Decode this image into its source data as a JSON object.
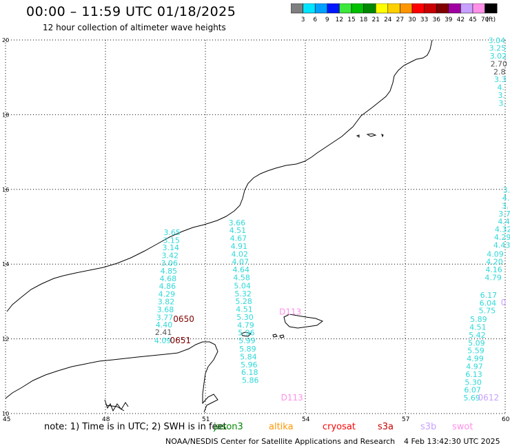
{
  "header": {
    "title": "00:00 – 11:59 UTC 01/18/2025",
    "subtitle": "12 hour collection of altimeter wave heights"
  },
  "colorbar": {
    "unit_label": "(ft)",
    "bins": [
      {
        "label": "3",
        "color": "#7f7f7f"
      },
      {
        "label": "6",
        "color": "#00e5ff"
      },
      {
        "label": "9",
        "color": "#00a0ff"
      },
      {
        "label": "12",
        "color": "#0018ff"
      },
      {
        "label": "15",
        "color": "#3ce83c"
      },
      {
        "label": "18",
        "color": "#00c000"
      },
      {
        "label": "21",
        "color": "#008800"
      },
      {
        "label": "24",
        "color": "#ffff00"
      },
      {
        "label": "27",
        "color": "#ffd000"
      },
      {
        "label": "30",
        "color": "#ff9600"
      },
      {
        "label": "33",
        "color": "#ff0000"
      },
      {
        "label": "36",
        "color": "#c80000"
      },
      {
        "label": "39",
        "color": "#800000"
      },
      {
        "label": "42",
        "color": "#a000a0"
      },
      {
        "label": "45",
        "color": "#c8a0ff"
      },
      {
        "label": "70",
        "color": "#ff90e8"
      },
      {
        "label": "",
        "color": "#000000"
      }
    ]
  },
  "axes": {
    "x_ticks": [
      {
        "lon": 45,
        "label": "45"
      },
      {
        "lon": 48,
        "label": "48"
      },
      {
        "lon": 51,
        "label": "51"
      },
      {
        "lon": 54,
        "label": "54"
      },
      {
        "lon": 57,
        "label": "57"
      },
      {
        "lon": 60,
        "label": "60"
      }
    ],
    "y_ticks": [
      {
        "lat": 10,
        "label": "10"
      },
      {
        "lat": 12,
        "label": "12"
      },
      {
        "lat": 14,
        "label": "14"
      },
      {
        "lat": 16,
        "label": "16"
      },
      {
        "lat": 18,
        "label": "18"
      },
      {
        "lat": 20,
        "label": "20"
      }
    ],
    "lon_range": [
      45,
      60
    ],
    "lat_range": [
      10,
      20
    ]
  },
  "tracks": [
    {
      "name": "track-a",
      "color": "#2fd8d8",
      "points": [
        {
          "lon": 50.0,
          "lat": 14.78,
          "v": "3.65"
        },
        {
          "lon": 49.98,
          "lat": 14.57,
          "v": "3.15"
        },
        {
          "lon": 49.96,
          "lat": 14.37,
          "v": "3.14"
        },
        {
          "lon": 49.94,
          "lat": 14.16,
          "v": "3.42"
        },
        {
          "lon": 49.92,
          "lat": 13.96,
          "v": "3.06"
        },
        {
          "lon": 49.9,
          "lat": 13.75,
          "v": "4.85"
        },
        {
          "lon": 49.88,
          "lat": 13.54,
          "v": "4.68"
        },
        {
          "lon": 49.86,
          "lat": 13.34,
          "v": "4.86"
        },
        {
          "lon": 49.84,
          "lat": 13.13,
          "v": "4.29"
        },
        {
          "lon": 49.82,
          "lat": 12.92,
          "v": "3.82"
        },
        {
          "lon": 49.8,
          "lat": 12.71,
          "v": "3.68"
        },
        {
          "lon": 49.78,
          "lat": 12.5,
          "v": "3.77"
        },
        {
          "lon": 49.76,
          "lat": 12.31,
          "v": "4.40"
        },
        {
          "lon": 49.74,
          "lat": 12.1,
          "v": "2.41",
          "color": "#555555"
        },
        {
          "lon": 49.72,
          "lat": 11.88,
          "v": "4.09"
        }
      ]
    },
    {
      "name": "track-b",
      "color": "#2fd8d8",
      "points": [
        {
          "lon": 51.95,
          "lat": 15.04,
          "v": "3.66"
        },
        {
          "lon": 51.97,
          "lat": 14.83,
          "v": "4.51"
        },
        {
          "lon": 51.99,
          "lat": 14.62,
          "v": "4.67"
        },
        {
          "lon": 52.01,
          "lat": 14.41,
          "v": "4.91"
        },
        {
          "lon": 52.03,
          "lat": 14.2,
          "v": "4.02"
        },
        {
          "lon": 52.05,
          "lat": 13.99,
          "v": "4.07"
        },
        {
          "lon": 52.07,
          "lat": 13.78,
          "v": "4.64"
        },
        {
          "lon": 52.09,
          "lat": 13.57,
          "v": "4.58"
        },
        {
          "lon": 52.11,
          "lat": 13.35,
          "v": "5.04"
        },
        {
          "lon": 52.13,
          "lat": 13.14,
          "v": "5.32"
        },
        {
          "lon": 52.15,
          "lat": 12.93,
          "v": "5.28"
        },
        {
          "lon": 52.17,
          "lat": 12.72,
          "v": "4.51"
        },
        {
          "lon": 52.19,
          "lat": 12.51,
          "v": "5.30"
        },
        {
          "lon": 52.21,
          "lat": 12.3,
          "v": "4.79"
        },
        {
          "lon": 52.23,
          "lat": 12.09,
          "v": "5.96"
        },
        {
          "lon": 52.25,
          "lat": 11.88,
          "v": "5.99"
        },
        {
          "lon": 52.27,
          "lat": 11.66,
          "v": "5.89"
        },
        {
          "lon": 52.29,
          "lat": 11.45,
          "v": "5.84"
        },
        {
          "lon": 52.31,
          "lat": 11.24,
          "v": "5.96"
        },
        {
          "lon": 52.33,
          "lat": 11.03,
          "v": "6.18"
        },
        {
          "lon": 52.35,
          "lat": 10.82,
          "v": "5.86"
        }
      ]
    },
    {
      "name": "track-c",
      "color": "#2fd8d8",
      "points": [
        {
          "lon": 59.5,
          "lat": 13.1,
          "v": "6.17"
        },
        {
          "lon": 59.48,
          "lat": 12.89,
          "v": "6.04"
        },
        {
          "lon": 59.46,
          "lat": 12.68,
          "v": "5.75"
        },
        {
          "lon": 59.2,
          "lat": 12.45,
          "v": "5.89"
        },
        {
          "lon": 59.18,
          "lat": 12.24,
          "v": "4.51"
        },
        {
          "lon": 59.16,
          "lat": 12.03,
          "v": "5.42"
        },
        {
          "lon": 59.14,
          "lat": 11.82,
          "v": "5.09"
        },
        {
          "lon": 59.12,
          "lat": 11.61,
          "v": "5.59"
        },
        {
          "lon": 59.1,
          "lat": 11.4,
          "v": "4.99"
        },
        {
          "lon": 59.08,
          "lat": 11.19,
          "v": "4.97"
        },
        {
          "lon": 59.06,
          "lat": 10.98,
          "v": "6.13"
        },
        {
          "lon": 59.04,
          "lat": 10.77,
          "v": "5.30"
        },
        {
          "lon": 59.02,
          "lat": 10.56,
          "v": "6.07"
        },
        {
          "lon": 59.0,
          "lat": 10.35,
          "v": "5.69"
        }
      ]
    },
    {
      "name": "track-d",
      "color": "#2fd8d8",
      "points": [
        {
          "lon": 59.7,
          "lat": 14.2,
          "v": "4.09"
        },
        {
          "lon": 59.68,
          "lat": 13.99,
          "v": "4.20"
        },
        {
          "lon": 59.66,
          "lat": 13.78,
          "v": "4.16"
        },
        {
          "lon": 59.64,
          "lat": 13.57,
          "v": "4.79"
        },
        {
          "lon": 59.9,
          "lat": 14.44,
          "v": "4.43"
        },
        {
          "lon": 59.92,
          "lat": 14.65,
          "v": "4.29"
        },
        {
          "lon": 59.94,
          "lat": 14.86,
          "v": "4.32"
        },
        {
          "lon": 59.96,
          "lat": 15.07,
          "v": "4.4"
        },
        {
          "lon": 59.98,
          "lat": 15.28,
          "v": "3.7"
        },
        {
          "lon": 60.0,
          "lat": 15.49,
          "v": "3."
        },
        {
          "lon": 60.02,
          "lat": 15.7,
          "v": "4."
        },
        {
          "lon": 60.04,
          "lat": 15.91,
          "v": "3."
        }
      ]
    },
    {
      "name": "track-e",
      "color": "#2fd8d8",
      "points": [
        {
          "lon": 59.75,
          "lat": 19.92,
          "v": "3.04"
        },
        {
          "lon": 59.77,
          "lat": 19.71,
          "v": "3.25"
        },
        {
          "lon": 59.79,
          "lat": 19.5,
          "v": "3.02"
        },
        {
          "lon": 59.81,
          "lat": 19.29,
          "v": "2.70",
          "color": "#555555"
        },
        {
          "lon": 59.83,
          "lat": 19.08,
          "v": "2.8",
          "color": "#555555"
        },
        {
          "lon": 59.85,
          "lat": 18.87,
          "v": "3.3"
        },
        {
          "lon": 59.87,
          "lat": 18.66,
          "v": "4."
        },
        {
          "lon": 59.89,
          "lat": 18.45,
          "v": "3."
        },
        {
          "lon": 59.91,
          "lat": 18.24,
          "v": "3."
        }
      ]
    }
  ],
  "pass_labels": [
    {
      "lon": 50.35,
      "lat": 12.45,
      "text": "0650",
      "color": "#800000"
    },
    {
      "lon": 50.25,
      "lat": 11.88,
      "text": "0651",
      "color": "#800000"
    },
    {
      "lon": 53.55,
      "lat": 12.65,
      "text": "D113",
      "color": "#ff90e8"
    },
    {
      "lon": 53.6,
      "lat": 10.35,
      "text": "D113",
      "color": "#ff90e8"
    },
    {
      "lon": 59.5,
      "lat": 10.35,
      "text": "0612",
      "color": "#c8a0ff"
    },
    {
      "lon": 59.95,
      "lat": 12.9,
      "text": "0",
      "color": "#c8a0ff"
    }
  ],
  "footer": {
    "note_prefix": "note:  1) Time is in UTC;  2) SWH is in feet",
    "satellites": [
      {
        "name": "jason3",
        "color": "#008800"
      },
      {
        "name": "altika",
        "color": "#ff9600"
      },
      {
        "name": "cryosat",
        "color": "#ff0000"
      },
      {
        "name": "s3a",
        "color": "#c80000"
      },
      {
        "name": "s3b",
        "color": "#c8a0ff"
      },
      {
        "name": "swot",
        "color": "#ff90e8"
      }
    ],
    "credit": "NOAA/NESDIS Center for Satellite Applications and Research",
    "timestamp": "4 Feb 13:42:30 UTC 2025"
  }
}
